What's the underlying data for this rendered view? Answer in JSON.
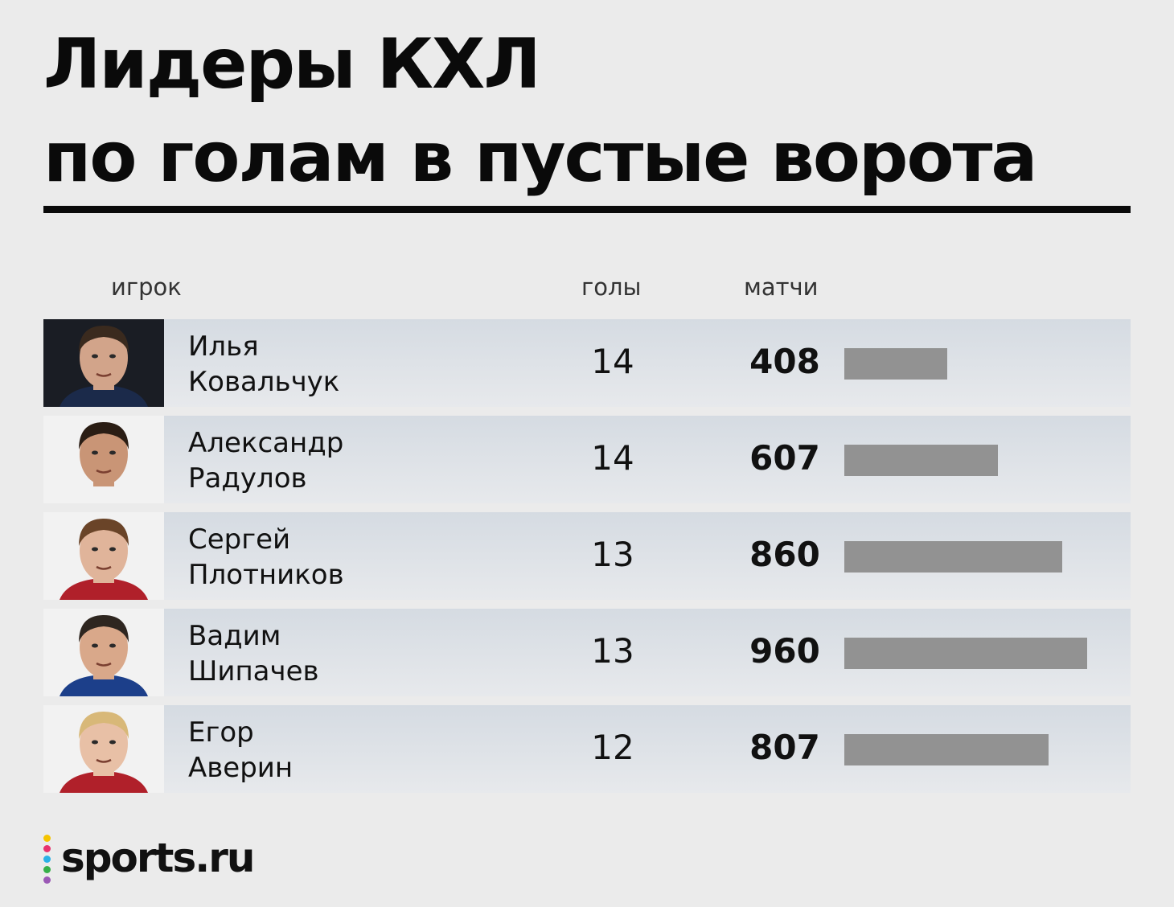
{
  "title_line1": "Лидеры КХЛ",
  "title_line2": "по голам в пустые ворота",
  "columns": {
    "player": "игрок",
    "goals": "голы",
    "matches": "матчи"
  },
  "chart_data": {
    "type": "bar",
    "title": "Лидеры КХЛ по голам в пустые ворота",
    "categories": [
      "Илья Ковальчук",
      "Александр Радулов",
      "Сергей Плотников",
      "Вадим Шипачев",
      "Егор Аверин"
    ],
    "series": [
      {
        "name": "голы",
        "values": [
          14,
          14,
          13,
          13,
          12
        ]
      },
      {
        "name": "матчи",
        "values": [
          408,
          607,
          860,
          960,
          807
        ]
      }
    ]
  },
  "players": [
    {
      "first": "Илья",
      "last": "Ковальчук",
      "goals": "14",
      "matches": "408",
      "matches_value": 408,
      "photo": {
        "bg": "#1a1d24",
        "skin": "#d2a48a",
        "hair": "#3a2a1e",
        "jersey": "#1b2a4a"
      }
    },
    {
      "first": "Александр",
      "last": "Радулов",
      "goals": "14",
      "matches": "607",
      "matches_value": 607,
      "photo": {
        "bg": "#f2f2f2",
        "skin": "#c99576",
        "hair": "#2a1d14",
        "jersey": "#f2f2f2"
      }
    },
    {
      "first": "Сергей",
      "last": "Плотников",
      "goals": "13",
      "matches": "860",
      "matches_value": 860,
      "photo": {
        "bg": "#f2f2f2",
        "skin": "#e0b49a",
        "hair": "#6a4428",
        "jersey": "#b0202a"
      }
    },
    {
      "first": "Вадим",
      "last": "Шипачев",
      "goals": "13",
      "matches": "960",
      "matches_value": 960,
      "photo": {
        "bg": "#f2f2f2",
        "skin": "#d9a88a",
        "hair": "#2e2620",
        "jersey": "#1c3f8a"
      }
    },
    {
      "first": "Егор",
      "last": "Аверин",
      "goals": "12",
      "matches": "807",
      "matches_value": 807,
      "photo": {
        "bg": "#f2f2f2",
        "skin": "#e8c0a6",
        "hair": "#d8b878",
        "jersey": "#b0202a"
      }
    }
  ],
  "bar_scale_max": 960,
  "bar_color": "#929292",
  "logo": {
    "text": "sports.ru",
    "dot_colors": [
      "#f5c400",
      "#e8326e",
      "#2ab1e6",
      "#36b04a",
      "#9b59b6"
    ]
  }
}
